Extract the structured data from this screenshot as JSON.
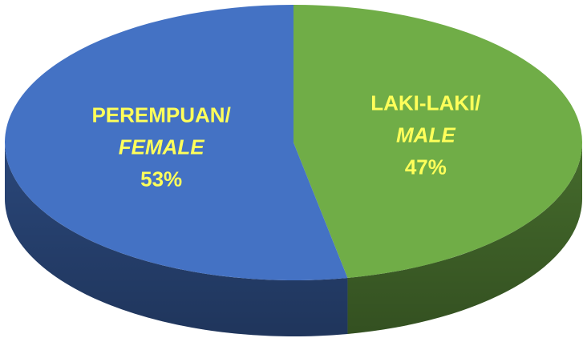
{
  "chart_data": {
    "type": "pie3d",
    "categories": [
      "PEREMPUAN/",
      "LAKI-LAKI/"
    ],
    "subcategories": [
      "FEMALE",
      "MALE"
    ],
    "values": [
      53,
      47
    ],
    "value_labels": [
      "53%",
      "47%"
    ],
    "colors": [
      "#4472c4",
      "#70ad47"
    ]
  }
}
